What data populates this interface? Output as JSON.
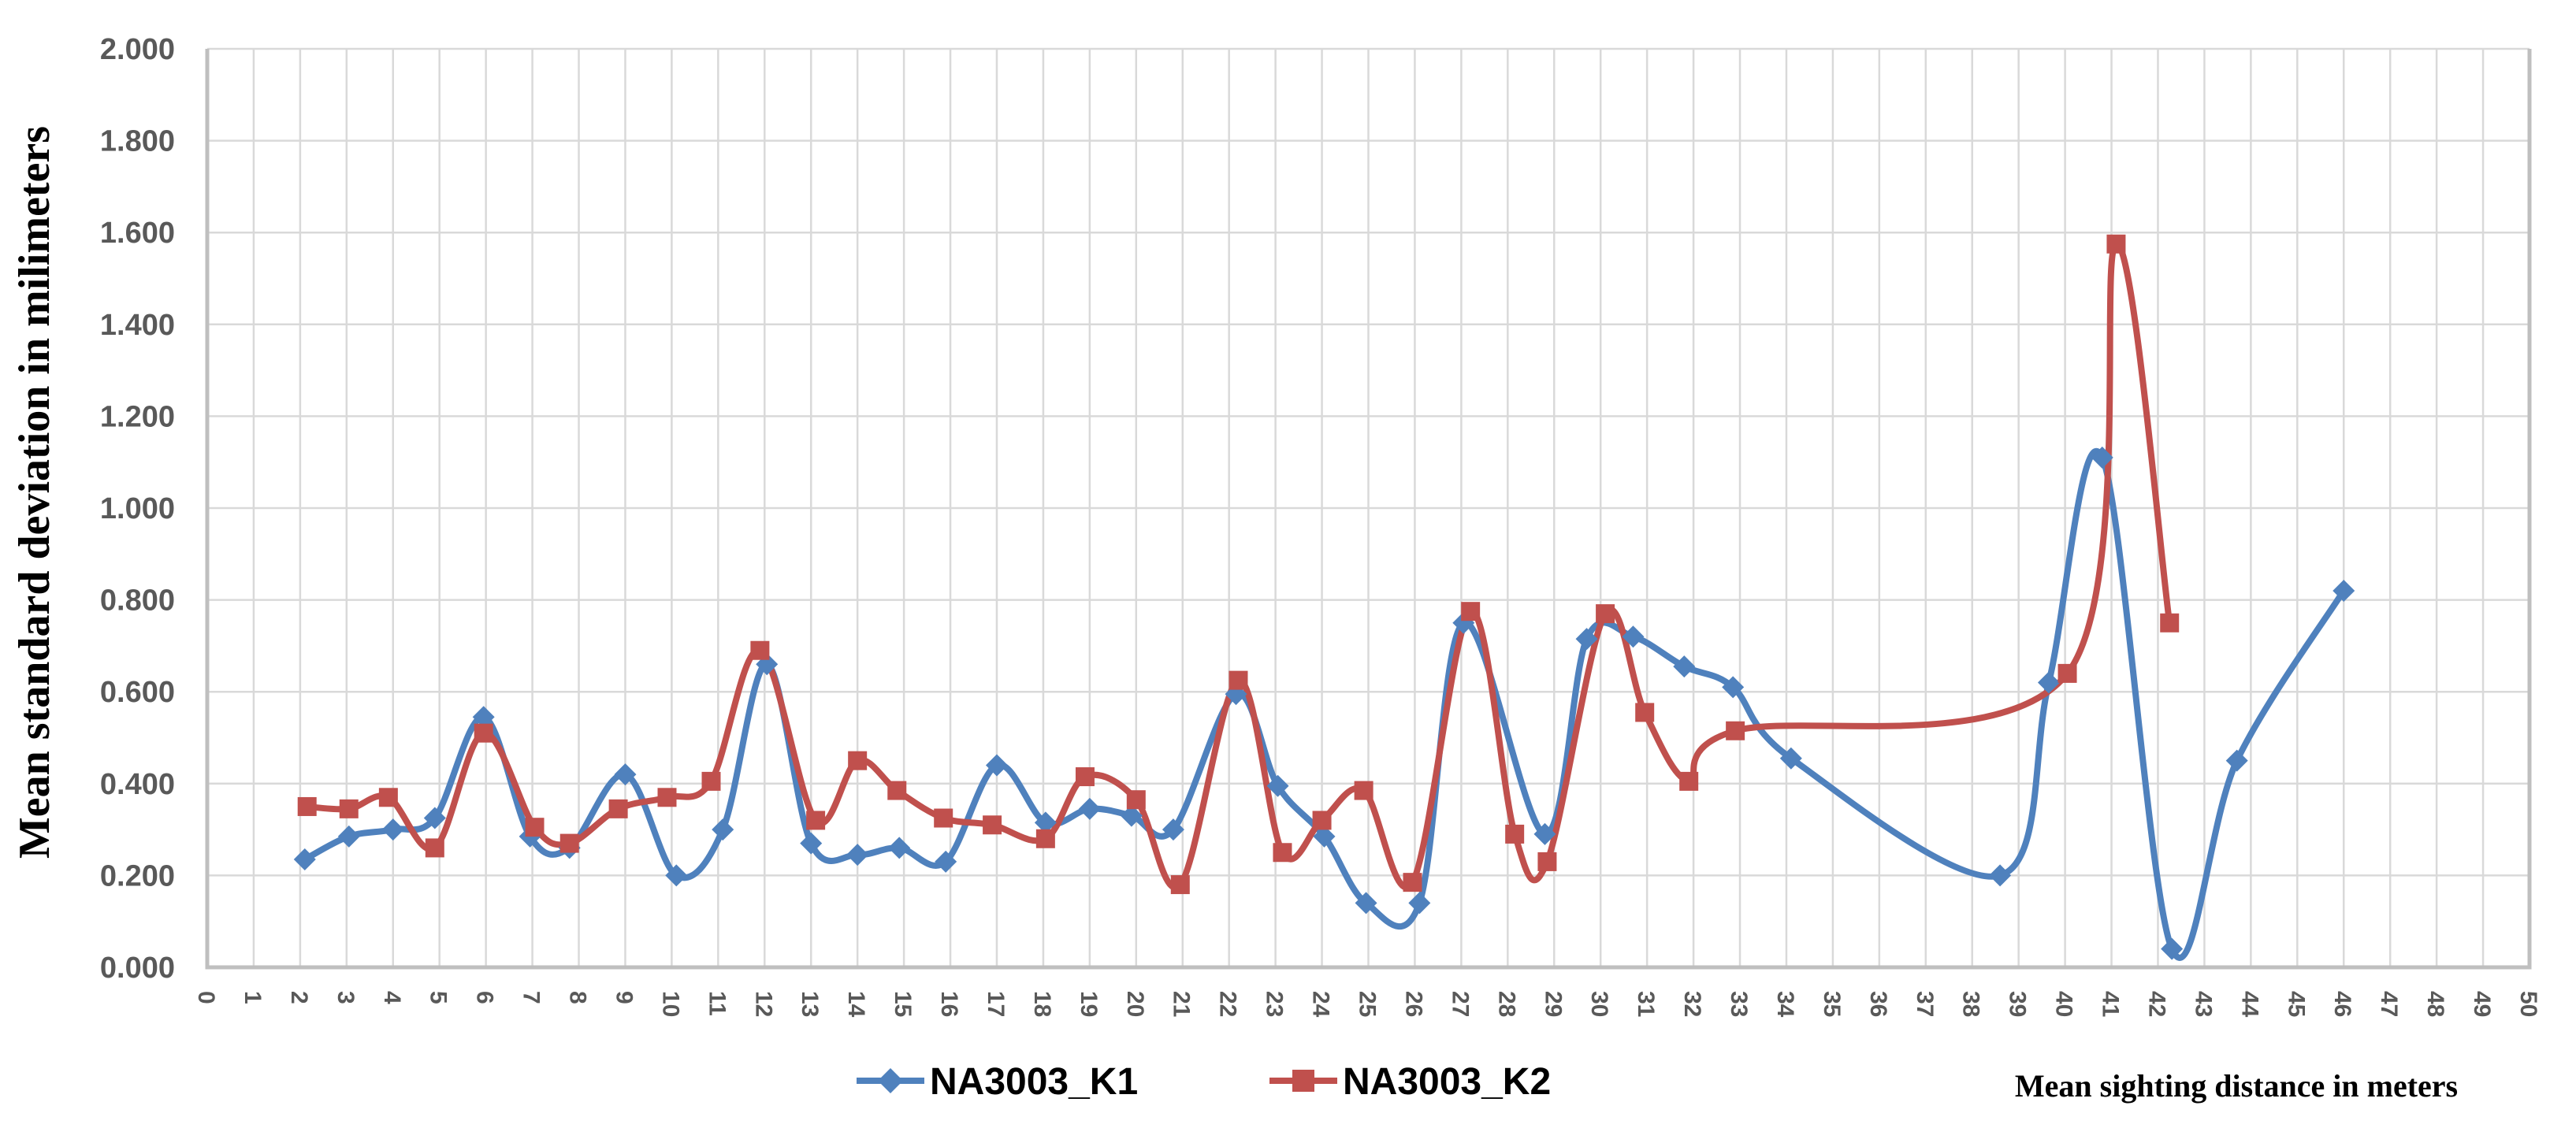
{
  "chart_data": {
    "type": "line",
    "title": "",
    "xlabel": "Mean sighting distance in meters",
    "ylabel": "Mean standard deviation in milimeters",
    "xlim": [
      0,
      50
    ],
    "ylim": [
      0.0,
      2.0
    ],
    "x_tick_step": 1,
    "y_tick_step": 0.2,
    "grid": true,
    "line_smoothing": true,
    "legend_position": "bottom-center",
    "x_ticks": [
      "0",
      "1",
      "2",
      "3",
      "4",
      "5",
      "6",
      "7",
      "8",
      "9",
      "10",
      "11",
      "12",
      "13",
      "14",
      "15",
      "16",
      "17",
      "18",
      "19",
      "20",
      "21",
      "22",
      "23",
      "24",
      "25",
      "26",
      "27",
      "28",
      "29",
      "30",
      "31",
      "32",
      "33",
      "34",
      "35",
      "36",
      "37",
      "38",
      "39",
      "40",
      "41",
      "42",
      "43",
      "44",
      "45",
      "46",
      "47",
      "48",
      "49",
      "50"
    ],
    "y_ticks": [
      "0.000",
      "0.200",
      "0.400",
      "0.600",
      "0.800",
      "1.000",
      "1.200",
      "1.400",
      "1.600",
      "1.800",
      "2.000"
    ],
    "series": [
      {
        "name": "NA3003_K1",
        "color": "#4F81BD",
        "marker": "diamond",
        "points": [
          [
            2.1,
            0.235
          ],
          [
            3.05,
            0.285
          ],
          [
            4.0,
            0.3
          ],
          [
            4.9,
            0.325
          ],
          [
            5.95,
            0.545
          ],
          [
            6.95,
            0.285
          ],
          [
            7.8,
            0.26
          ],
          [
            9.0,
            0.42
          ],
          [
            10.1,
            0.2
          ],
          [
            11.1,
            0.3
          ],
          [
            12.05,
            0.66
          ],
          [
            13.0,
            0.27
          ],
          [
            14.0,
            0.245
          ],
          [
            14.9,
            0.26
          ],
          [
            15.9,
            0.23
          ],
          [
            17.0,
            0.44
          ],
          [
            18.05,
            0.315
          ],
          [
            19.0,
            0.345
          ],
          [
            19.9,
            0.33
          ],
          [
            20.8,
            0.3
          ],
          [
            22.15,
            0.595
          ],
          [
            23.05,
            0.395
          ],
          [
            24.05,
            0.285
          ],
          [
            24.95,
            0.14
          ],
          [
            26.1,
            0.14
          ],
          [
            27.05,
            0.75
          ],
          [
            28.8,
            0.29
          ],
          [
            29.7,
            0.715
          ],
          [
            30.7,
            0.72
          ],
          [
            31.8,
            0.655
          ],
          [
            32.85,
            0.61
          ],
          [
            34.1,
            0.455
          ],
          [
            38.6,
            0.2
          ],
          [
            39.65,
            0.62
          ],
          [
            40.8,
            1.11
          ],
          [
            42.3,
            0.04
          ],
          [
            43.7,
            0.45
          ],
          [
            46.0,
            0.82
          ]
        ]
      },
      {
        "name": "NA3003_K2",
        "color": "#C0504D",
        "marker": "square",
        "points": [
          [
            2.15,
            0.35
          ],
          [
            3.05,
            0.345
          ],
          [
            3.9,
            0.37
          ],
          [
            4.9,
            0.26
          ],
          [
            5.95,
            0.51
          ],
          [
            7.05,
            0.305
          ],
          [
            7.8,
            0.27
          ],
          [
            8.85,
            0.345
          ],
          [
            9.9,
            0.37
          ],
          [
            10.85,
            0.405
          ],
          [
            11.9,
            0.69
          ],
          [
            13.1,
            0.32
          ],
          [
            14.0,
            0.45
          ],
          [
            14.85,
            0.385
          ],
          [
            15.85,
            0.325
          ],
          [
            16.9,
            0.31
          ],
          [
            18.05,
            0.28
          ],
          [
            18.9,
            0.415
          ],
          [
            20.0,
            0.365
          ],
          [
            20.95,
            0.18
          ],
          [
            22.2,
            0.625
          ],
          [
            23.15,
            0.25
          ],
          [
            24.0,
            0.32
          ],
          [
            24.9,
            0.385
          ],
          [
            25.95,
            0.185
          ],
          [
            27.2,
            0.775
          ],
          [
            28.15,
            0.29
          ],
          [
            28.85,
            0.23
          ],
          [
            30.1,
            0.77
          ],
          [
            30.95,
            0.555
          ],
          [
            31.9,
            0.405
          ],
          [
            32.9,
            0.515
          ],
          [
            40.05,
            0.64
          ],
          [
            41.1,
            1.575
          ],
          [
            42.25,
            0.75
          ]
        ]
      }
    ]
  },
  "styles": {
    "background": "#FFFFFF",
    "grid_color": "#D9D9D9",
    "axis_border_color": "#BFBFBF",
    "tick_label_color": "#595959",
    "series_blue": "#4F81BD",
    "series_red": "#C0504D"
  }
}
